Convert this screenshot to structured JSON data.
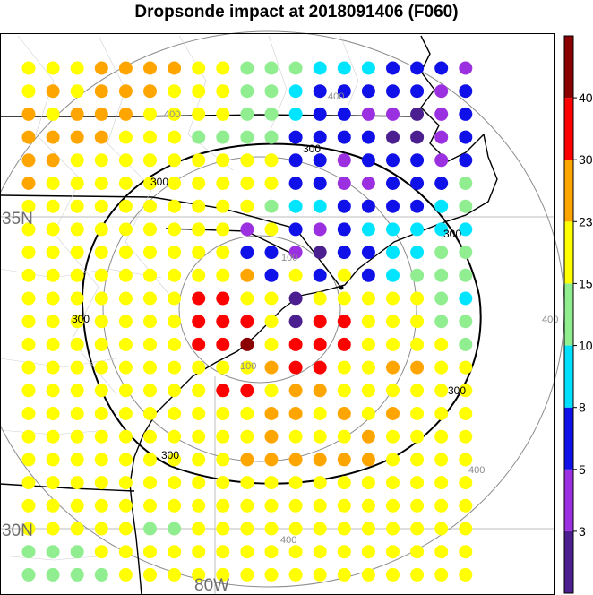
{
  "title": "Dropsonde impact at 2018091406 (F060)",
  "map_labels": {
    "lat_35": "35N",
    "lat_30": "30N",
    "lon_80": "80W"
  },
  "range_ring_labels": [
    "100",
    "100",
    "400",
    "400",
    "400",
    "400",
    "400"
  ],
  "contour_labels": [
    "300",
    "300",
    "300",
    "300",
    "300",
    "300"
  ],
  "colorbar": {
    "ticks": [
      "40",
      "30",
      "23",
      "15",
      "10",
      "8",
      "5",
      "3"
    ],
    "colors": [
      "#4b1f8f",
      "#9b30e0",
      "#1010e8",
      "#00e0ff",
      "#90ee90",
      "#ffff00",
      "#ffa500",
      "#ff0000",
      "#8b0000"
    ]
  },
  "grid": {
    "rows": [
      "YYYOOOOYYGGGCCCBBBP",
      "YOYOOOYYYGGCBBBBBPB",
      "OYOOOYYYYGGCBBPPIPB",
      "OOOOYYYGGGGBBBBIIPB",
      "OOYYYYYYYYYBBPBBBPB",
      "OYYYYYYYYYYBBPPBBBG",
      "YYYYYYYYYYGCCBBBBCG",
      "YYYYYYYYYPYBPBCCCCC",
      "YYYYYYYYYBBPIBBCCGG",
      "YYYYYYYYYOBYBYBCGGG",
      "YYYYYYYRRYYIYYYYYGC",
      "YYYYYYYRRRYIRRYYYGG",
      "YYYYYYYRRDYRRRYYYYG",
      "YYYYYYYYYYORRYYOOYY",
      "YYYYYYYYRRYOOYYYYYY",
      "YYYYYYYYYYOOYOYOYYY",
      "YYYYYYYYYYOYYYOYYYY",
      "YYYYYYYYYOOOOOOYYYY",
      "YYYYYYYYYYYYYYYYYYY",
      "YYYYYYYYYYYYYYYYYYY",
      "YYYYYGGYYYYYYYYYYYY",
      "GGGYYYYYYYYYYYYYYYY",
      "GGGGYYYYYYYYYYYYYYY"
    ],
    "color_key": {
      "Y": "#ffff00",
      "O": "#ffa500",
      "R": "#ff0000",
      "D": "#8b0000",
      "G": "#90ee90",
      "C": "#00e5ff",
      "B": "#1010e8",
      "P": "#9b30e0",
      "I": "#4b1f8f"
    }
  }
}
